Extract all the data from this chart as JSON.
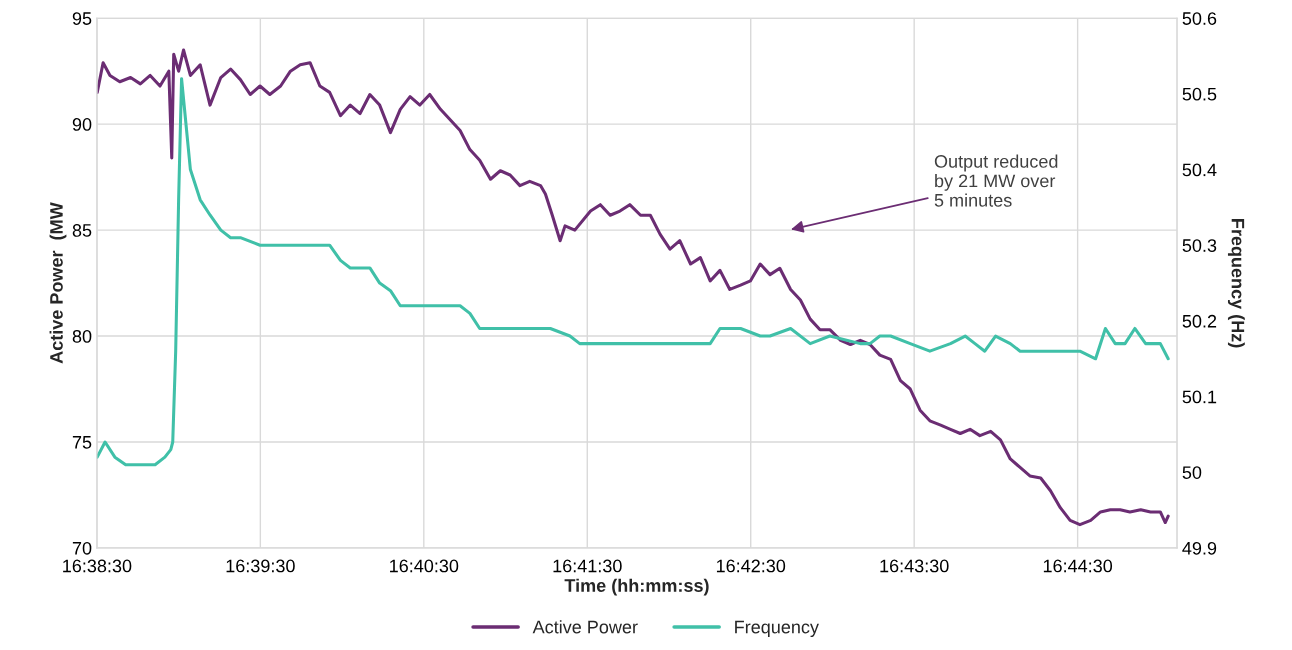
{
  "chart_data": {
    "type": "line",
    "xlabel": "Time (hh:mm:ss)",
    "ylabel": "Active Power  (MW",
    "y2label": "Frequency (Hz)",
    "xlim": [
      16.641667,
      16.7518
    ],
    "xticks": [
      {
        "value": 16.641667,
        "label": "16:38:30"
      },
      {
        "value": 16.658333,
        "label": "16:39:30"
      },
      {
        "value": 16.675,
        "label": "16:40:30"
      },
      {
        "value": 16.691667,
        "label": "16:41:30"
      },
      {
        "value": 16.708333,
        "label": "16:42:30"
      },
      {
        "value": 16.725,
        "label": "16:43:30"
      },
      {
        "value": 16.741667,
        "label": "16:44:30"
      }
    ],
    "ylim": [
      70,
      95
    ],
    "yticks": [
      70,
      75,
      80,
      85,
      90,
      95
    ],
    "y2lim": [
      49.9,
      50.6
    ],
    "y2ticks": [
      49.9,
      50,
      50.1,
      50.2,
      50.3,
      50.4,
      50.5,
      50.6
    ],
    "grid": true,
    "legend": "bottom",
    "annotations": [
      "Output reduced\nby 21 MW over\n5 minutes"
    ],
    "series": [
      {
        "name": "Active Power",
        "color": "#6b2d73",
        "x": [
          16.6417,
          16.6423,
          16.643,
          16.644,
          16.6451,
          16.6461,
          16.6471,
          16.6481,
          16.649,
          16.6493,
          16.6495,
          16.65,
          16.6505,
          16.6512,
          16.6522,
          16.6532,
          16.6543,
          16.6553,
          16.6563,
          16.6573,
          16.6583,
          16.6593,
          16.6604,
          16.6614,
          16.6624,
          16.6634,
          16.6644,
          16.6654,
          16.6665,
          16.6675,
          16.6685,
          16.6695,
          16.6705,
          16.6716,
          16.6726,
          16.6736,
          16.6746,
          16.6756,
          16.6767,
          16.6787,
          16.6797,
          16.6807,
          16.6818,
          16.6828,
          16.6838,
          16.6848,
          16.6858,
          16.6869,
          16.6874,
          16.6881,
          16.6889,
          16.6894,
          16.6904,
          16.692,
          16.693,
          16.694,
          16.695,
          16.696,
          16.6971,
          16.6981,
          16.6991,
          16.7001,
          16.7011,
          16.7022,
          16.7032,
          16.7042,
          16.7052,
          16.7062,
          16.7073,
          16.7083,
          16.7093,
          16.7103,
          16.7113,
          16.7124,
          16.7134,
          16.7144,
          16.7154,
          16.7164,
          16.7175,
          16.7185,
          16.7195,
          16.7205,
          16.7215,
          16.7226,
          16.7236,
          16.7246,
          16.7256,
          16.7266,
          16.7277,
          16.7287,
          16.7297,
          16.7307,
          16.7317,
          16.7328,
          16.7338,
          16.7348,
          16.7358,
          16.7368,
          16.7379,
          16.7389,
          16.7399,
          16.7409,
          16.7419,
          16.743,
          16.744,
          16.745,
          16.746,
          16.747,
          16.7481,
          16.7491,
          16.7501,
          16.7506,
          16.7509
        ],
        "values": [
          91.5,
          92.9,
          92.3,
          92.0,
          92.2,
          91.9,
          92.3,
          91.8,
          92.5,
          88.4,
          93.3,
          92.5,
          93.5,
          92.3,
          92.8,
          90.9,
          92.2,
          92.6,
          92.1,
          91.4,
          91.8,
          91.4,
          91.8,
          92.5,
          92.8,
          92.9,
          91.8,
          91.5,
          90.4,
          90.9,
          90.5,
          91.4,
          90.9,
          89.6,
          90.7,
          91.3,
          90.9,
          91.4,
          90.7,
          89.7,
          88.8,
          88.3,
          87.4,
          87.8,
          87.6,
          87.1,
          87.3,
          87.1,
          86.7,
          85.7,
          84.5,
          85.2,
          85.0,
          85.9,
          86.2,
          85.7,
          85.9,
          86.2,
          85.7,
          85.7,
          84.8,
          84.1,
          84.5,
          83.4,
          83.7,
          82.6,
          83.1,
          82.2,
          82.4,
          82.6,
          83.4,
          82.9,
          83.2,
          82.2,
          81.7,
          80.8,
          80.3,
          80.3,
          79.8,
          79.6,
          79.8,
          79.6,
          79.1,
          78.9,
          77.9,
          77.5,
          76.5,
          76.0,
          75.8,
          75.6,
          75.4,
          75.6,
          75.3,
          75.5,
          75.1,
          74.2,
          73.8,
          73.4,
          73.3,
          72.7,
          71.9,
          71.3,
          71.1,
          71.3,
          71.7,
          71.8,
          71.8,
          71.7,
          71.8,
          71.7,
          71.7,
          71.2,
          71.5
        ]
      },
      {
        "name": "Frequency",
        "color": "#40c0a8",
        "axis": "y2",
        "x": [
          16.6417,
          16.6425,
          16.6435,
          16.6446,
          16.6456,
          16.6466,
          16.6476,
          16.6486,
          16.6492,
          16.6494,
          16.6497,
          16.65,
          16.6503,
          16.6506,
          16.6512,
          16.6522,
          16.6532,
          16.6543,
          16.6553,
          16.6563,
          16.6583,
          16.6604,
          16.6624,
          16.6644,
          16.6654,
          16.6665,
          16.6675,
          16.6695,
          16.6705,
          16.6716,
          16.6726,
          16.6767,
          16.6787,
          16.6797,
          16.6807,
          16.6869,
          16.6879,
          16.6899,
          16.6909,
          16.693,
          16.695,
          16.6991,
          16.7032,
          16.7042,
          16.7052,
          16.7073,
          16.7093,
          16.7103,
          16.7124,
          16.7144,
          16.7164,
          16.7195,
          16.7205,
          16.7215,
          16.7226,
          16.7246,
          16.7266,
          16.7287,
          16.7302,
          16.7312,
          16.7322,
          16.7333,
          16.7348,
          16.7358,
          16.7399,
          16.7419,
          16.7435,
          16.7445,
          16.7455,
          16.7465,
          16.7475,
          16.7486,
          16.7501,
          16.7509
        ],
        "values": [
          50.02,
          50.04,
          50.02,
          50.01,
          50.01,
          50.01,
          50.01,
          50.02,
          50.03,
          50.04,
          50.16,
          50.36,
          50.52,
          50.48,
          50.4,
          50.36,
          50.34,
          50.32,
          50.31,
          50.31,
          50.3,
          50.3,
          50.3,
          50.3,
          50.3,
          50.28,
          50.27,
          50.27,
          50.25,
          50.24,
          50.22,
          50.22,
          50.22,
          50.21,
          50.19,
          50.19,
          50.19,
          50.18,
          50.17,
          50.17,
          50.17,
          50.17,
          50.17,
          50.17,
          50.19,
          50.19,
          50.18,
          50.18,
          50.19,
          50.17,
          50.18,
          50.17,
          50.17,
          50.18,
          50.18,
          50.17,
          50.16,
          50.17,
          50.18,
          50.17,
          50.16,
          50.18,
          50.17,
          50.16,
          50.16,
          50.16,
          50.15,
          50.19,
          50.17,
          50.17,
          50.19,
          50.17,
          50.17,
          50.15
        ]
      }
    ]
  }
}
